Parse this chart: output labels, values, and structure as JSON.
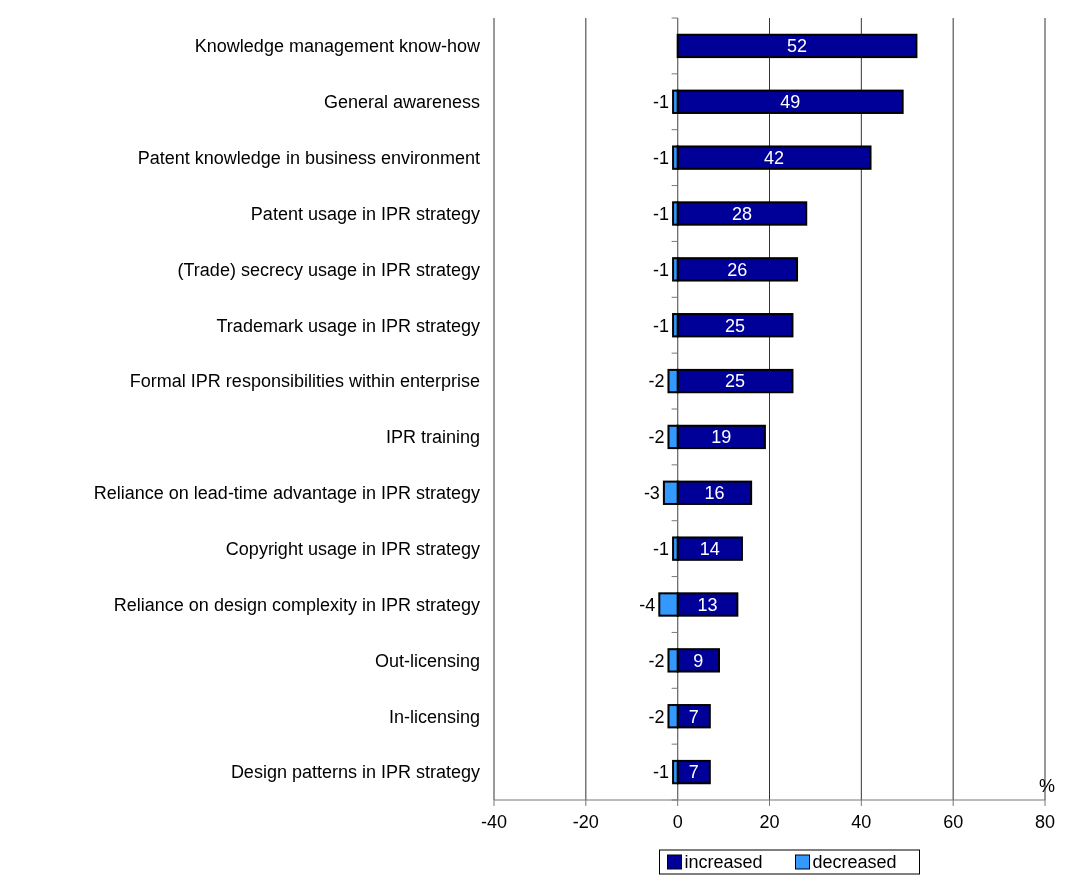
{
  "chart_data": {
    "type": "bar",
    "orientation": "horizontal",
    "stacked": true,
    "xlabel": "%",
    "categories": [
      "Knowledge management know-how",
      "General awareness",
      "Patent knowledge in business environment",
      "Patent usage in IPR strategy",
      "(Trade) secrecy usage in IPR strategy",
      "Trademark usage in IPR strategy",
      "Formal IPR responsibilities within enterprise",
      "IPR training",
      "Reliance on lead-time advantage in IPR strategy",
      "Copyright usage in IPR strategy",
      "Reliance on design complexity in IPR strategy",
      "Out-licensing",
      "In-licensing",
      "Design patterns in IPR strategy"
    ],
    "series": [
      {
        "name": "increased",
        "color": "#000099",
        "values": [
          52,
          49,
          42,
          28,
          26,
          25,
          25,
          19,
          16,
          14,
          13,
          9,
          7,
          7
        ]
      },
      {
        "name": "decreased",
        "color": "#3399ff",
        "values": [
          null,
          -1,
          -1,
          -1,
          -1,
          -1,
          -2,
          -2,
          -3,
          -1,
          -4,
          -2,
          -2,
          -1
        ]
      }
    ],
    "xlim": [
      -40,
      80
    ],
    "xticks": [
      -40,
      -20,
      0,
      20,
      40,
      60,
      80
    ],
    "grid": "x",
    "legend": "bottom",
    "data_labels": true
  }
}
